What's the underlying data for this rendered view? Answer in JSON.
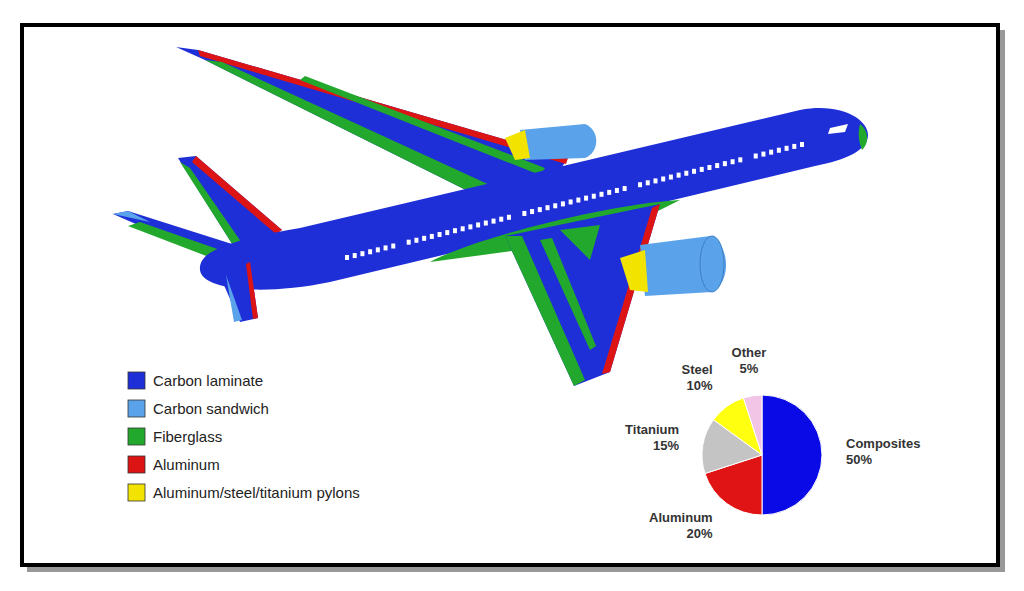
{
  "legend": {
    "items": [
      {
        "label": "Carbon laminate",
        "color": "#1f2fd8"
      },
      {
        "label": "Carbon sandwich",
        "color": "#5aa2ea"
      },
      {
        "label": "Fiberglass",
        "color": "#22a82c"
      },
      {
        "label": "Aluminum",
        "color": "#dd1414"
      },
      {
        "label": "Aluminum/steel/titanium pylons",
        "color": "#f2e400"
      }
    ]
  },
  "chart_data": {
    "type": "pie",
    "categories": [
      "Composites",
      "Aluminum",
      "Titanium",
      "Steel",
      "Other"
    ],
    "values": [
      50,
      20,
      15,
      10,
      5
    ],
    "value_labels": [
      "50%",
      "20%",
      "15%",
      "10%",
      "5%"
    ],
    "colors": [
      "#0a0ae6",
      "#e01414",
      "#c4c4c4",
      "#ffff10",
      "#f2c4e6"
    ],
    "data_labels": true
  }
}
